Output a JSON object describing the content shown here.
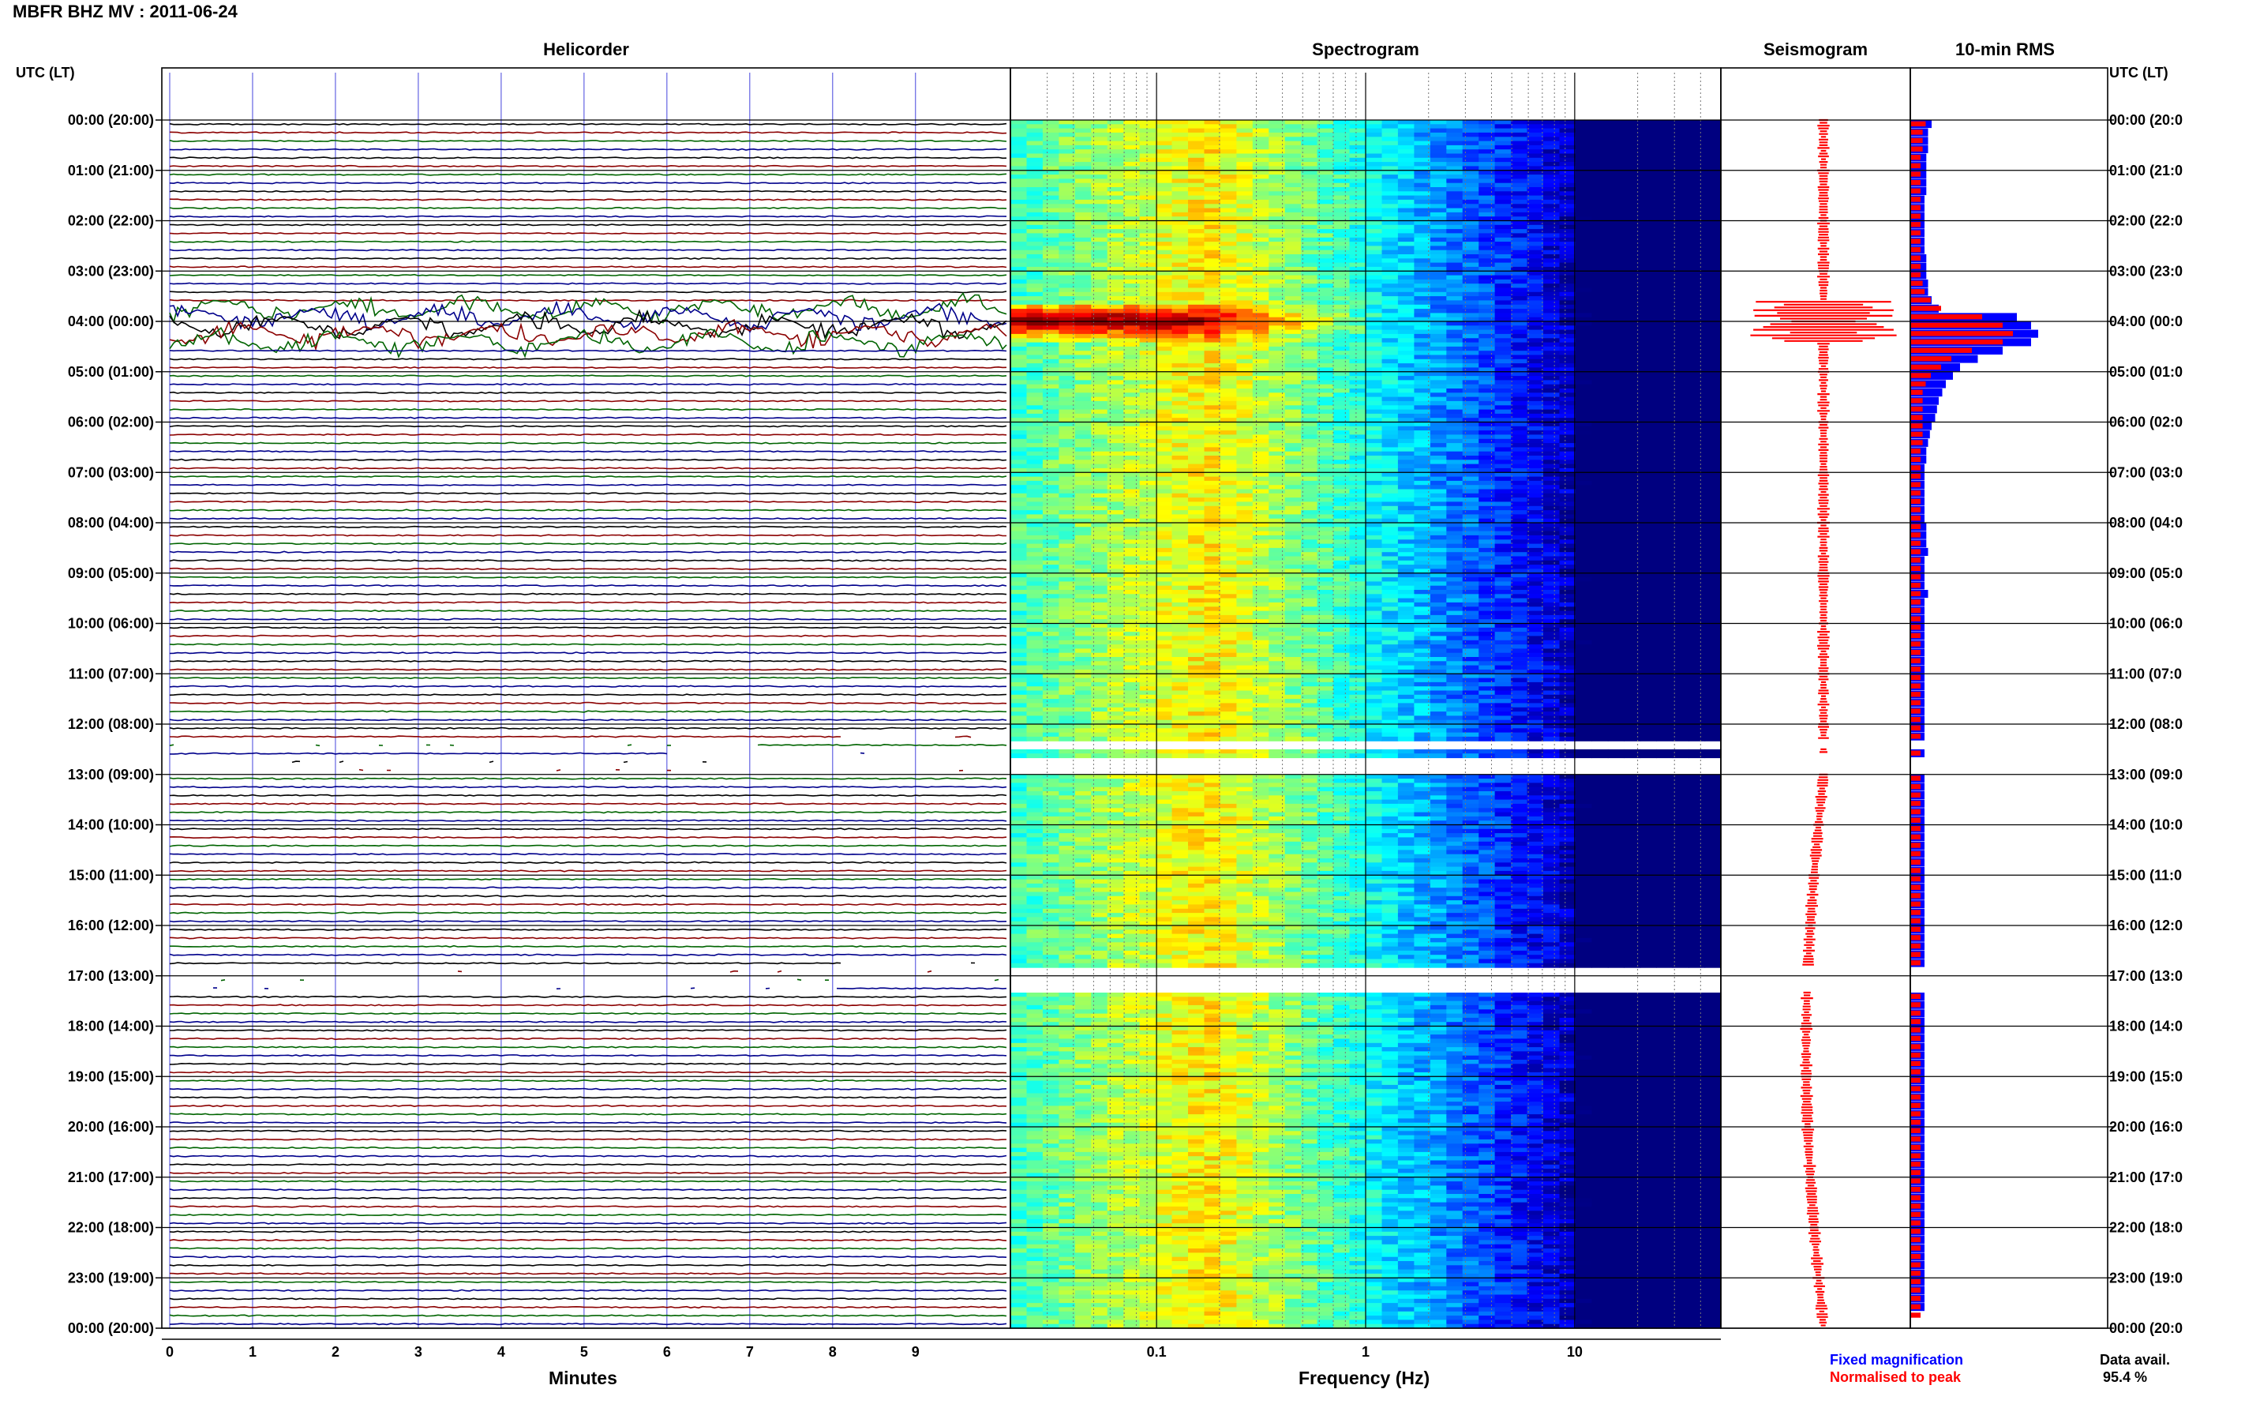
{
  "title": "MBFR BHZ MV : 2011-06-24",
  "panels": {
    "helicorder": "Helicorder",
    "spectrogram": "Spectrogram",
    "seismogram": "Seismogram",
    "rms": "10-min RMS"
  },
  "axis_headers": {
    "left": "UTC (LT)",
    "right": "UTC (LT)"
  },
  "x_axes": {
    "helicorder": {
      "label": "Minutes",
      "ticks": [
        "0",
        "1",
        "2",
        "3",
        "4",
        "5",
        "6",
        "7",
        "8",
        "9"
      ]
    },
    "spectrogram": {
      "label": "Frequency (Hz)",
      "ticks": [
        "0.1",
        "1",
        "10"
      ]
    }
  },
  "time_labels_left": [
    "00:00 (20:00)",
    "01:00 (21:00)",
    "02:00 (22:00)",
    "03:00 (23:00)",
    "04:00 (00:00)",
    "05:00 (01:00)",
    "06:00 (02:00)",
    "07:00 (03:00)",
    "08:00 (04:00)",
    "09:00 (05:00)",
    "10:00 (06:00)",
    "11:00 (07:00)",
    "12:00 (08:00)",
    "13:00 (09:00)",
    "14:00 (10:00)",
    "15:00 (11:00)",
    "16:00 (12:00)",
    "17:00 (13:00)",
    "18:00 (14:00)",
    "19:00 (15:00)",
    "20:00 (16:00)",
    "21:00 (17:00)",
    "22:00 (18:00)",
    "23:00 (19:00)",
    "00:00 (20:00)"
  ],
  "time_labels_right": [
    "00:00 (20:0",
    "01:00 (21:0",
    "02:00 (22:0",
    "03:00 (23:0",
    "04:00 (00:0",
    "05:00 (01:0",
    "06:00 (02:0",
    "07:00 (03:0",
    "08:00 (04:0",
    "09:00 (05:0",
    "10:00 (06:0",
    "11:00 (07:0",
    "12:00 (08:0",
    "13:00 (09:0",
    "14:00 (10:0",
    "15:00 (11:0",
    "16:00 (12:0",
    "17:00 (13:0",
    "18:00 (14:0",
    "19:00 (15:0",
    "20:00 (16:0",
    "21:00 (17:0",
    "22:00 (18:0",
    "23:00 (19:0",
    "00:00 (20:0"
  ],
  "legend": {
    "fixed": "Fixed magnification",
    "normalised": "Normalised to peak"
  },
  "data_avail": {
    "label": "Data avail.",
    "value": "95.4 %"
  },
  "colors": {
    "trace_cycle": [
      "#000000",
      "#8b0000",
      "#006400",
      "#00008b"
    ],
    "fixed": "#0000ff",
    "normalised": "#ff0000",
    "grid_vertical": "#4444dd"
  },
  "chart_data": {
    "type": "heatmap",
    "station": "MBFR BHZ MV",
    "date": "2011-06-24",
    "rows_per_hour": 6,
    "hours": 24,
    "gaps_utc_hours": [
      [
        12.3,
        12.45
      ],
      [
        12.6,
        13.0
      ],
      [
        16.8,
        17.3
      ]
    ],
    "event_utc_hours": [
      3.6,
      4.4
    ],
    "spectrogram": {
      "freq_min_hz": 0.02,
      "freq_max_hz": 50,
      "scale": "log",
      "x_ticks_hz": [
        0.1,
        1,
        10
      ]
    },
    "rms_10min": {
      "fixed": [
        0.6,
        0.5,
        0.5,
        0.5,
        0.45,
        0.45,
        0.45,
        0.45,
        0.45,
        0.4,
        0.4,
        0.4,
        0.4,
        0.4,
        0.4,
        0.4,
        0.45,
        0.45,
        0.45,
        0.5,
        0.5,
        0.6,
        0.8,
        3.0,
        3.4,
        3.6,
        3.4,
        2.6,
        1.9,
        1.4,
        1.2,
        1.0,
        0.9,
        0.8,
        0.75,
        0.7,
        0.6,
        0.55,
        0.5,
        0.45,
        0.45,
        0.4,
        0.4,
        0.4,
        0.4,
        0.4,
        0.4,
        0.4,
        0.45,
        0.45,
        0.45,
        0.5,
        0.4,
        0.4,
        0.4,
        0.4,
        0.5,
        0.4,
        0.4,
        0.4,
        0.4,
        0.4,
        0.4,
        0.4,
        0.4,
        0.4,
        0.4,
        0.4,
        0.4,
        0.4,
        0.4,
        0.4,
        0.4,
        0.4,
        0.4,
        0.4,
        0.4,
        0.4,
        0.4,
        0.4,
        0.4,
        0.4,
        0.4,
        0.4,
        0.4,
        0.4,
        0.4,
        0.4,
        0.4,
        0.4,
        0.4,
        0.4,
        0.4,
        0.4,
        0.4,
        0.4,
        0.4,
        0.4,
        0.4,
        0.4,
        0.4,
        0.4,
        0.4,
        0.4,
        0.4,
        0.4,
        0.4,
        0.4,
        0.4,
        0.4,
        0.4,
        0.4,
        0.4,
        0.4,
        0.4,
        0.4,
        0.4,
        0.4,
        0.4,
        0.4,
        0.4,
        0.4,
        0.4,
        0.4,
        0.4,
        0.4,
        0.4,
        0.4,
        0.4,
        0.4,
        0.4,
        0.4,
        0.4,
        0.4,
        0.4,
        0.4,
        0.4,
        0.4,
        0.4,
        0.4,
        0.4,
        0.4
      ],
      "normalised": [
        0.15,
        0.12,
        0.12,
        0.12,
        0.1,
        0.1,
        0.1,
        0.1,
        0.1,
        0.1,
        0.1,
        0.1,
        0.1,
        0.1,
        0.1,
        0.1,
        0.1,
        0.1,
        0.1,
        0.12,
        0.14,
        0.2,
        0.3,
        0.7,
        0.9,
        1.0,
        0.9,
        0.6,
        0.4,
        0.3,
        0.2,
        0.15,
        0.12,
        0.12,
        0.12,
        0.12,
        0.12,
        0.12,
        0.12,
        0.1,
        0.1,
        0.1,
        0.1,
        0.1,
        0.1,
        0.1,
        0.1,
        0.1,
        0.1,
        0.1,
        0.1,
        0.1,
        0.1,
        0.1,
        0.1,
        0.1,
        0.1,
        0.1,
        0.1,
        0.1,
        0.1,
        0.1,
        0.1,
        0.1,
        0.1,
        0.1,
        0.1,
        0.1,
        0.1,
        0.1,
        0.1,
        0.1,
        0.1,
        0.1,
        0.1,
        0.1,
        0.1,
        0.1,
        0.1,
        0.1,
        0.1,
        0.1,
        0.1,
        0.1,
        0.1,
        0.1,
        0.1,
        0.1,
        0.1,
        0.1,
        0.1,
        0.1,
        0.1,
        0.1,
        0.1,
        0.1,
        0.1,
        0.1,
        0.1,
        0.1,
        0.1,
        0.1,
        0.1,
        0.1,
        0.1,
        0.1,
        0.1,
        0.1,
        0.1,
        0.1,
        0.1,
        0.1,
        0.1,
        0.1,
        0.1,
        0.1,
        0.1,
        0.1,
        0.1,
        0.1,
        0.1,
        0.1,
        0.1,
        0.1,
        0.1,
        0.1,
        0.1,
        0.1,
        0.1,
        0.1,
        0.1,
        0.1,
        0.1,
        0.1,
        0.1,
        0.1,
        0.1,
        0.1,
        0.1,
        0.1,
        0.1,
        0.1,
        0.1
      ]
    }
  }
}
